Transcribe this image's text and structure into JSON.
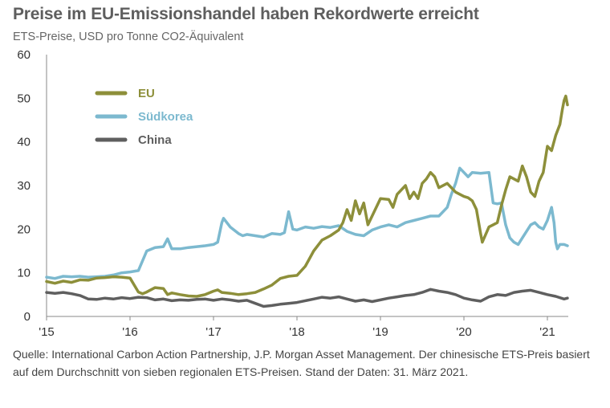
{
  "header": {
    "title": "Preise im EU-Emissionshandel haben Rekordwerte erreicht",
    "subtitle": "ETS-Preise, USD pro Tonne CO2-Äquivalent"
  },
  "footer": {
    "source": "Quelle: International Carbon Action Partnership, J.P. Morgan Asset Management. Der chinesische ETS-Preis basiert auf dem Durchschnitt von sieben regionalen ETS-Preisen. Stand der Daten: 31. März 2021."
  },
  "chart_data": {
    "type": "line",
    "title": "Preise im EU-Emissionshandel haben Rekordwerte erreicht",
    "subtitle": "ETS-Preise, USD pro Tonne CO2-Äquivalent",
    "xlabel": "",
    "ylabel": "",
    "xlim": [
      2015,
      2021.25
    ],
    "ylim": [
      0,
      60
    ],
    "yticks": [
      0,
      10,
      20,
      30,
      40,
      50,
      60
    ],
    "xticks": [
      {
        "value": 2015,
        "label": "'15"
      },
      {
        "value": 2016,
        "label": "'16"
      },
      {
        "value": 2017,
        "label": "'17"
      },
      {
        "value": 2018,
        "label": "'18"
      },
      {
        "value": 2019,
        "label": "'19"
      },
      {
        "value": 2020,
        "label": "'20"
      },
      {
        "value": 2021,
        "label": "'21"
      }
    ],
    "grid": false,
    "legend_position": "top-left",
    "series": [
      {
        "name": "EU",
        "color": "#8d8f3a",
        "points": [
          [
            2015.0,
            8.0
          ],
          [
            2015.1,
            7.6
          ],
          [
            2015.2,
            8.1
          ],
          [
            2015.3,
            7.8
          ],
          [
            2015.4,
            8.4
          ],
          [
            2015.5,
            8.3
          ],
          [
            2015.6,
            8.8
          ],
          [
            2015.7,
            8.9
          ],
          [
            2015.8,
            9.1
          ],
          [
            2015.9,
            9.0
          ],
          [
            2016.0,
            8.8
          ],
          [
            2016.05,
            7.2
          ],
          [
            2016.1,
            5.6
          ],
          [
            2016.15,
            5.2
          ],
          [
            2016.2,
            5.6
          ],
          [
            2016.3,
            6.6
          ],
          [
            2016.4,
            6.4
          ],
          [
            2016.45,
            5.0
          ],
          [
            2016.5,
            5.4
          ],
          [
            2016.6,
            5.0
          ],
          [
            2016.7,
            4.7
          ],
          [
            2016.8,
            4.6
          ],
          [
            2016.9,
            5.0
          ],
          [
            2017.0,
            5.8
          ],
          [
            2017.05,
            6.1
          ],
          [
            2017.1,
            5.5
          ],
          [
            2017.2,
            5.3
          ],
          [
            2017.3,
            5.0
          ],
          [
            2017.4,
            5.2
          ],
          [
            2017.5,
            5.5
          ],
          [
            2017.6,
            6.3
          ],
          [
            2017.7,
            7.2
          ],
          [
            2017.8,
            8.7
          ],
          [
            2017.9,
            9.2
          ],
          [
            2018.0,
            9.4
          ],
          [
            2018.1,
            11.5
          ],
          [
            2018.2,
            15.0
          ],
          [
            2018.3,
            17.5
          ],
          [
            2018.4,
            18.5
          ],
          [
            2018.5,
            19.8
          ],
          [
            2018.55,
            21.5
          ],
          [
            2018.6,
            24.5
          ],
          [
            2018.65,
            22.0
          ],
          [
            2018.7,
            26.5
          ],
          [
            2018.75,
            23.5
          ],
          [
            2018.8,
            26.0
          ],
          [
            2018.85,
            21.0
          ],
          [
            2018.9,
            23.0
          ],
          [
            2019.0,
            27.0
          ],
          [
            2019.1,
            26.8
          ],
          [
            2019.15,
            25.0
          ],
          [
            2019.2,
            28.0
          ],
          [
            2019.3,
            30.0
          ],
          [
            2019.35,
            27.0
          ],
          [
            2019.4,
            28.5
          ],
          [
            2019.45,
            27.0
          ],
          [
            2019.5,
            30.5
          ],
          [
            2019.55,
            31.5
          ],
          [
            2019.6,
            33.0
          ],
          [
            2019.65,
            32.0
          ],
          [
            2019.7,
            29.5
          ],
          [
            2019.8,
            30.5
          ],
          [
            2019.9,
            28.5
          ],
          [
            2020.0,
            27.5
          ],
          [
            2020.05,
            27.2
          ],
          [
            2020.1,
            26.5
          ],
          [
            2020.15,
            24.5
          ],
          [
            2020.2,
            19.0
          ],
          [
            2020.22,
            17.0
          ],
          [
            2020.3,
            20.5
          ],
          [
            2020.35,
            21.0
          ],
          [
            2020.4,
            21.5
          ],
          [
            2020.45,
            25.5
          ],
          [
            2020.5,
            29.0
          ],
          [
            2020.55,
            32.0
          ],
          [
            2020.6,
            31.5
          ],
          [
            2020.65,
            31.0
          ],
          [
            2020.7,
            34.5
          ],
          [
            2020.75,
            32.0
          ],
          [
            2020.8,
            28.5
          ],
          [
            2020.85,
            27.5
          ],
          [
            2020.9,
            31.0
          ],
          [
            2020.95,
            33.0
          ],
          [
            2021.0,
            39.0
          ],
          [
            2021.05,
            38.0
          ],
          [
            2021.1,
            41.5
          ],
          [
            2021.15,
            44.0
          ],
          [
            2021.18,
            47.5
          ],
          [
            2021.2,
            49.5
          ],
          [
            2021.22,
            50.5
          ],
          [
            2021.24,
            48.5
          ]
        ]
      },
      {
        "name": "Südkorea",
        "color": "#7cb9cf",
        "points": [
          [
            2015.0,
            9.0
          ],
          [
            2015.1,
            8.7
          ],
          [
            2015.2,
            9.2
          ],
          [
            2015.3,
            9.1
          ],
          [
            2015.4,
            9.2
          ],
          [
            2015.5,
            9.0
          ],
          [
            2015.6,
            9.1
          ],
          [
            2015.7,
            9.2
          ],
          [
            2015.8,
            9.5
          ],
          [
            2015.9,
            10.0
          ],
          [
            2016.0,
            10.2
          ],
          [
            2016.1,
            10.5
          ],
          [
            2016.2,
            15.0
          ],
          [
            2016.3,
            15.8
          ],
          [
            2016.4,
            16.0
          ],
          [
            2016.45,
            17.8
          ],
          [
            2016.5,
            15.5
          ],
          [
            2016.6,
            15.5
          ],
          [
            2016.7,
            15.8
          ],
          [
            2016.8,
            16.0
          ],
          [
            2016.9,
            16.2
          ],
          [
            2017.0,
            16.5
          ],
          [
            2017.05,
            17.0
          ],
          [
            2017.1,
            21.5
          ],
          [
            2017.12,
            22.5
          ],
          [
            2017.2,
            20.5
          ],
          [
            2017.3,
            19.0
          ],
          [
            2017.35,
            18.5
          ],
          [
            2017.4,
            18.8
          ],
          [
            2017.5,
            18.5
          ],
          [
            2017.6,
            18.2
          ],
          [
            2017.7,
            19.0
          ],
          [
            2017.8,
            18.8
          ],
          [
            2017.85,
            19.2
          ],
          [
            2017.9,
            24.0
          ],
          [
            2017.95,
            20.0
          ],
          [
            2018.0,
            19.8
          ],
          [
            2018.1,
            20.5
          ],
          [
            2018.2,
            20.2
          ],
          [
            2018.3,
            20.6
          ],
          [
            2018.4,
            20.4
          ],
          [
            2018.5,
            20.8
          ],
          [
            2018.6,
            19.5
          ],
          [
            2018.7,
            18.8
          ],
          [
            2018.8,
            18.5
          ],
          [
            2018.9,
            19.8
          ],
          [
            2019.0,
            20.5
          ],
          [
            2019.1,
            21.0
          ],
          [
            2019.2,
            20.5
          ],
          [
            2019.3,
            21.5
          ],
          [
            2019.4,
            22.0
          ],
          [
            2019.5,
            22.5
          ],
          [
            2019.6,
            23.0
          ],
          [
            2019.7,
            23.0
          ],
          [
            2019.8,
            25.0
          ],
          [
            2019.85,
            28.0
          ],
          [
            2019.9,
            30.5
          ],
          [
            2019.95,
            34.0
          ],
          [
            2020.0,
            33.0
          ],
          [
            2020.05,
            32.0
          ],
          [
            2020.1,
            33.0
          ],
          [
            2020.2,
            32.8
          ],
          [
            2020.3,
            33.0
          ],
          [
            2020.35,
            26.0
          ],
          [
            2020.4,
            25.8
          ],
          [
            2020.45,
            26.0
          ],
          [
            2020.5,
            21.0
          ],
          [
            2020.55,
            18.0
          ],
          [
            2020.6,
            17.0
          ],
          [
            2020.65,
            16.5
          ],
          [
            2020.7,
            18.0
          ],
          [
            2020.75,
            19.5
          ],
          [
            2020.8,
            21.0
          ],
          [
            2020.85,
            21.5
          ],
          [
            2020.9,
            20.5
          ],
          [
            2020.95,
            20.0
          ],
          [
            2021.0,
            22.0
          ],
          [
            2021.05,
            25.0
          ],
          [
            2021.08,
            21.5
          ],
          [
            2021.1,
            17.0
          ],
          [
            2021.12,
            15.5
          ],
          [
            2021.15,
            16.5
          ],
          [
            2021.2,
            16.5
          ],
          [
            2021.24,
            16.2
          ]
        ]
      },
      {
        "name": "China",
        "color": "#5f5f5f",
        "points": [
          [
            2015.0,
            5.5
          ],
          [
            2015.1,
            5.3
          ],
          [
            2015.2,
            5.5
          ],
          [
            2015.3,
            5.2
          ],
          [
            2015.4,
            4.8
          ],
          [
            2015.5,
            4.0
          ],
          [
            2015.6,
            3.9
          ],
          [
            2015.7,
            4.2
          ],
          [
            2015.8,
            4.0
          ],
          [
            2015.9,
            4.3
          ],
          [
            2016.0,
            4.1
          ],
          [
            2016.1,
            4.4
          ],
          [
            2016.2,
            4.3
          ],
          [
            2016.3,
            3.8
          ],
          [
            2016.4,
            4.0
          ],
          [
            2016.5,
            3.6
          ],
          [
            2016.6,
            3.8
          ],
          [
            2016.7,
            3.7
          ],
          [
            2016.8,
            3.9
          ],
          [
            2016.9,
            4.0
          ],
          [
            2017.0,
            3.7
          ],
          [
            2017.1,
            4.0
          ],
          [
            2017.2,
            3.8
          ],
          [
            2017.3,
            3.5
          ],
          [
            2017.4,
            3.7
          ],
          [
            2017.5,
            3.0
          ],
          [
            2017.6,
            2.3
          ],
          [
            2017.7,
            2.5
          ],
          [
            2017.8,
            2.8
          ],
          [
            2017.9,
            3.0
          ],
          [
            2018.0,
            3.2
          ],
          [
            2018.1,
            3.6
          ],
          [
            2018.2,
            4.0
          ],
          [
            2018.3,
            4.4
          ],
          [
            2018.4,
            4.2
          ],
          [
            2018.5,
            4.5
          ],
          [
            2018.6,
            4.0
          ],
          [
            2018.7,
            3.5
          ],
          [
            2018.8,
            3.8
          ],
          [
            2018.9,
            3.4
          ],
          [
            2019.0,
            3.8
          ],
          [
            2019.1,
            4.2
          ],
          [
            2019.2,
            4.5
          ],
          [
            2019.3,
            4.8
          ],
          [
            2019.4,
            5.0
          ],
          [
            2019.5,
            5.5
          ],
          [
            2019.6,
            6.2
          ],
          [
            2019.7,
            5.8
          ],
          [
            2019.8,
            5.5
          ],
          [
            2019.9,
            5.0
          ],
          [
            2020.0,
            4.2
          ],
          [
            2020.1,
            3.8
          ],
          [
            2020.2,
            3.5
          ],
          [
            2020.3,
            4.5
          ],
          [
            2020.4,
            5.0
          ],
          [
            2020.5,
            4.8
          ],
          [
            2020.6,
            5.5
          ],
          [
            2020.7,
            5.8
          ],
          [
            2020.8,
            6.0
          ],
          [
            2020.9,
            5.5
          ],
          [
            2021.0,
            5.0
          ],
          [
            2021.1,
            4.6
          ],
          [
            2021.2,
            4.0
          ],
          [
            2021.24,
            4.2
          ]
        ]
      }
    ]
  }
}
